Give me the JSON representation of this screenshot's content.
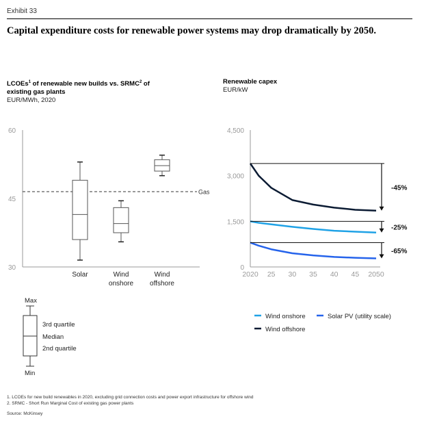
{
  "header": {
    "exhibit": "Exhibit 33",
    "headline": "Capital expenditure costs for renewable power systems may drop dramatically by 2050."
  },
  "left_panel": {
    "title_part1": "LCOEs",
    "title_sup1": "1",
    "title_part2": " of renewable new builds vs. SRMC",
    "title_sup2": "2",
    "title_part3": " of",
    "title_line2": "existing gas plants",
    "unit": "EUR/MWh, 2020"
  },
  "right_panel": {
    "title": "Renewable capex",
    "unit": "EUR/kW"
  },
  "legend_box": {
    "max": "Max",
    "q3": "3rd quartile",
    "median": "Median",
    "q2": "2nd quartile",
    "min": "Min"
  },
  "legend_lines": {
    "wind_onshore": "Wind onshore",
    "solar_pv": "Solar PV (utility scale)",
    "wind_offshore": "Wind offshore"
  },
  "footnotes": {
    "note1": "1. LCOEs for new build renewables in 2020, excluding grid connection costs and power export infrastructure for offshore wind",
    "note2": "2. SRMC - Short Run Marginal Cost of existing gas power plants",
    "source": "Source: McKinsey"
  },
  "colors": {
    "wind_offshore": "#0b1b33",
    "wind_onshore": "#1fa2e6",
    "solar_pv": "#2563eb",
    "axis": "#9a9a9a",
    "box": "#555555"
  },
  "chart_data": [
    {
      "type": "box",
      "ylim": [
        30,
        60
      ],
      "yticks": [
        30,
        45,
        60
      ],
      "grid": false,
      "reference_line": {
        "label": "Gas",
        "value": 46.5,
        "style": "dashed"
      },
      "categories": [
        {
          "label": [
            "Solar"
          ],
          "min": 31.5,
          "q1": 36,
          "median": 41.5,
          "q3": 49,
          "max": 53
        },
        {
          "label": [
            "Wind",
            "onshore"
          ],
          "min": 35.5,
          "q1": 37.5,
          "median": 39.5,
          "q3": 43,
          "max": 44.5
        },
        {
          "label": [
            "Wind",
            "offshore"
          ],
          "min": 50,
          "q1": 51,
          "median": 52.2,
          "q3": 53.5,
          "max": 54.5
        }
      ]
    },
    {
      "type": "line",
      "title": "Renewable capex",
      "ylabel": "EUR/kW",
      "ylim": [
        0,
        4500
      ],
      "yticks": [
        0,
        1500,
        3000,
        4500
      ],
      "x": [
        2020,
        2022,
        2025,
        2030,
        2035,
        2040,
        2045,
        2050
      ],
      "xticks": [
        2020,
        2025,
        2030,
        2035,
        2040,
        2045,
        2050
      ],
      "xtick_labels": [
        "2020",
        "25",
        "30",
        "35",
        "40",
        "45",
        "2050"
      ],
      "grid": false,
      "series": [
        {
          "name": "Wind offshore",
          "values": [
            3400,
            3000,
            2600,
            2200,
            2050,
            1950,
            1880,
            1850
          ],
          "change_label": "-45%"
        },
        {
          "name": "Wind onshore",
          "values": [
            1500,
            1450,
            1400,
            1320,
            1250,
            1190,
            1160,
            1130
          ],
          "change_label": "-25%"
        },
        {
          "name": "Solar PV (utility scale)",
          "values": [
            800,
            700,
            580,
            450,
            380,
            330,
            300,
            280
          ],
          "change_label": "-65%"
        }
      ]
    }
  ]
}
